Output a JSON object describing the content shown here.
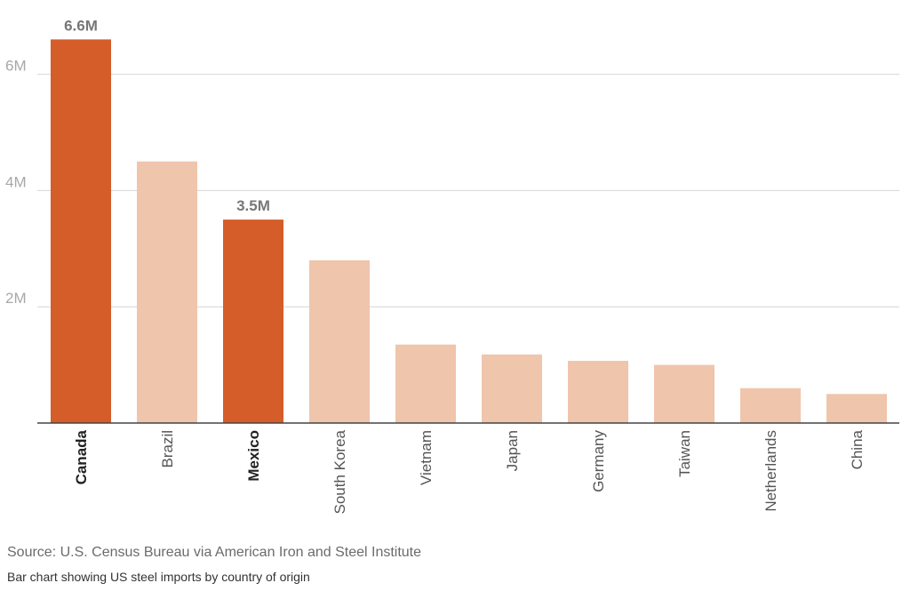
{
  "chart_data": {
    "type": "bar",
    "categories": [
      "Canada",
      "Brazil",
      "Mexico",
      "South Korea",
      "Vietnam",
      "Japan",
      "Germany",
      "Taiwan",
      "Netherlands",
      "China"
    ],
    "values": [
      6.6,
      4.5,
      3.5,
      2.8,
      1.35,
      1.18,
      1.07,
      1.0,
      0.6,
      0.5
    ],
    "highlighted": [
      "Canada",
      "Mexico"
    ],
    "data_labels": {
      "Canada": "6.6M",
      "Mexico": "3.5M"
    },
    "y_ticks": [
      {
        "value": 2,
        "label": "2M"
      },
      {
        "value": 4,
        "label": "4M"
      },
      {
        "value": 6,
        "label": "6M"
      }
    ],
    "ylim": [
      0,
      7.2
    ],
    "grid": true,
    "colors": {
      "highlight": "#d45d29",
      "default": "#efc5ac",
      "grid": "#d6d6d6",
      "axis": "#444444"
    }
  },
  "source": "Source: U.S. Census Bureau via American Iron and Steel Institute",
  "caption": "Bar chart showing US steel imports by country of origin"
}
